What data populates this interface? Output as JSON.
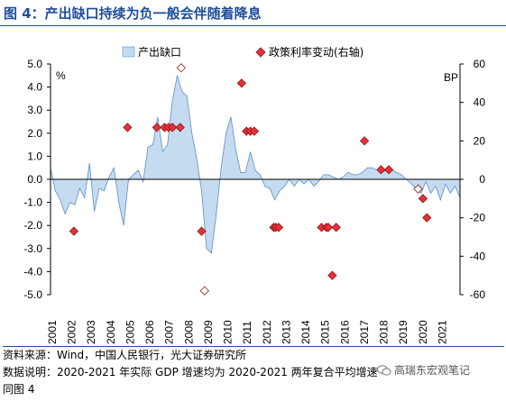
{
  "title": "图 4：产出缺口持续为负一般会伴随着降息",
  "chart_data": {
    "type": "area+scatter",
    "legend": [
      {
        "name": "产出缺口",
        "kind": "area",
        "color": "#c5dbf0",
        "stroke": "#5b8fc7"
      },
      {
        "name": "政策利率变动(右轴)",
        "kind": "diamond",
        "color": "#e8303a",
        "stroke": "#8b1a1a"
      }
    ],
    "left_axis": {
      "unit_label": "%",
      "min": -5,
      "max": 5,
      "step": 1,
      "tick_labels": [
        "5.0",
        "4.0",
        "3.0",
        "2.0",
        "1.0",
        "0.0",
        "-1.0",
        "-2.0",
        "-3.0",
        "-4.0",
        "-5.0"
      ]
    },
    "right_axis": {
      "unit_label": "BP",
      "min": -60,
      "max": 60,
      "step": 20,
      "tick_labels": [
        "60",
        "40",
        "20",
        "0",
        "-20",
        "-40",
        "-60"
      ]
    },
    "x_axis": {
      "min": 2001,
      "max": 2022,
      "tick_labels": [
        "2001",
        "2002",
        "2003",
        "2004",
        "2005",
        "2006",
        "2007",
        "2008",
        "2009",
        "2010",
        "2011",
        "2012",
        "2013",
        "2014",
        "2015",
        "2016",
        "2017",
        "2018",
        "2019",
        "2020",
        "2021"
      ]
    },
    "output_gap": {
      "x": [
        2001.0,
        2001.25,
        2001.5,
        2001.75,
        2002.0,
        2002.25,
        2002.5,
        2002.75,
        2003.0,
        2003.25,
        2003.5,
        2003.75,
        2004.0,
        2004.25,
        2004.5,
        2004.75,
        2005.0,
        2005.25,
        2005.5,
        2005.75,
        2006.0,
        2006.25,
        2006.5,
        2006.75,
        2007.0,
        2007.25,
        2007.5,
        2007.75,
        2008.0,
        2008.25,
        2008.5,
        2008.75,
        2009.0,
        2009.25,
        2009.5,
        2009.75,
        2010.0,
        2010.25,
        2010.5,
        2010.75,
        2011.0,
        2011.25,
        2011.5,
        2011.75,
        2012.0,
        2012.25,
        2012.5,
        2012.75,
        2013.0,
        2013.25,
        2013.5,
        2013.75,
        2014.0,
        2014.25,
        2014.5,
        2014.75,
        2015.0,
        2015.25,
        2015.5,
        2015.75,
        2016.0,
        2016.25,
        2016.5,
        2016.75,
        2017.0,
        2017.25,
        2017.5,
        2017.75,
        2018.0,
        2018.25,
        2018.5,
        2018.75,
        2019.0,
        2019.25,
        2019.5,
        2019.75,
        2020.0,
        2020.25,
        2020.5,
        2020.75,
        2021.0,
        2021.25,
        2021.5,
        2021.75,
        2022.0
      ],
      "y": [
        0.5,
        -0.5,
        -0.9,
        -1.5,
        -1.0,
        -1.1,
        -0.4,
        -0.8,
        0.7,
        -1.4,
        -0.4,
        -0.5,
        0.1,
        0.5,
        -1.0,
        -2.0,
        0.0,
        0.2,
        0.4,
        -0.1,
        1.4,
        1.5,
        2.7,
        1.2,
        1.5,
        3.4,
        4.5,
        3.8,
        3.6,
        2.0,
        0.9,
        -0.5,
        -3.0,
        -3.2,
        -1.5,
        0.5,
        2.0,
        2.7,
        1.3,
        0.3,
        0.3,
        1.2,
        0.4,
        0.2,
        -0.3,
        -0.4,
        -0.9,
        -0.5,
        -0.3,
        0.0,
        -0.3,
        0.0,
        -0.2,
        0.0,
        -0.3,
        -0.1,
        0.2,
        0.2,
        0.1,
        0.0,
        0.1,
        0.3,
        0.2,
        0.2,
        0.3,
        0.5,
        0.5,
        0.4,
        0.3,
        0.4,
        0.4,
        0.3,
        0.2,
        0.0,
        -0.2,
        -0.4,
        -0.6,
        -0.1,
        -0.6,
        -0.3,
        -0.9,
        -0.2,
        -0.6,
        -0.3,
        -0.8
      ]
    },
    "rate_changes": {
      "x": [
        2002.2,
        2004.95,
        2006.45,
        2006.85,
        2007.05,
        2007.25,
        2007.65,
        2007.7,
        2008.75,
        2008.9,
        2010.8,
        2011.05,
        2011.25,
        2011.45,
        2012.45,
        2012.55,
        2012.7,
        2014.9,
        2015.15,
        2015.25,
        2015.45,
        2015.65,
        2017.1,
        2017.95,
        2018.35,
        2019.85,
        2020.1,
        2020.3
      ],
      "y_bp": [
        -27,
        27,
        27,
        27,
        27,
        27,
        27,
        58,
        -27,
        -58,
        50,
        25,
        25,
        25,
        -25,
        -25,
        -25,
        -25,
        -25,
        -25,
        -50,
        -25,
        20,
        5,
        5,
        -5,
        -10,
        -20
      ],
      "hollow": [
        false,
        false,
        false,
        false,
        false,
        false,
        false,
        true,
        false,
        true,
        false,
        false,
        false,
        false,
        false,
        false,
        false,
        false,
        false,
        false,
        false,
        false,
        false,
        false,
        false,
        true,
        false,
        false
      ]
    }
  },
  "footer": {
    "source": "资料来源：Wind，中国人民银行，光大证券研究所",
    "note": "数据说明：2020-2021 年实际 GDP 增速均为 2020-2021 两年复合平均增速",
    "subtitle": "同图 4",
    "watermark": "高瑞东宏观笔记"
  }
}
